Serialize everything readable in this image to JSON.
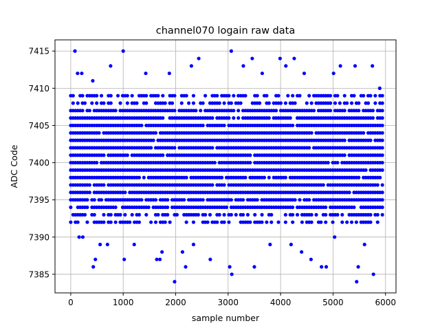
{
  "chart_data": {
    "type": "scatter",
    "title": "channel070 logain raw data",
    "xlabel": "sample number",
    "ylabel": "ADC Code",
    "xlim": [
      -300,
      6200
    ],
    "ylim": [
      7382.5,
      7416.5
    ],
    "xticks": [
      0,
      1000,
      2000,
      3000,
      4000,
      5000,
      6000
    ],
    "yticks": [
      7385,
      7390,
      7395,
      7400,
      7405,
      7410,
      7415
    ],
    "grid": true,
    "marker_color": "#0000ff",
    "series": [
      {
        "name": "",
        "summary": {
          "x_range": [
            0,
            5940
          ],
          "y_range": [
            7384,
            7415
          ],
          "dense_band": [
            7392,
            7409
          ]
        },
        "points": [
          [
            80,
            7415
          ],
          [
            1000,
            7415
          ],
          [
            3060,
            7415
          ],
          [
            130,
            7412
          ],
          [
            210,
            7412
          ],
          [
            420,
            7411
          ],
          [
            760,
            7413
          ],
          [
            1430,
            7412
          ],
          [
            1880,
            7412
          ],
          [
            2300,
            7413
          ],
          [
            2440,
            7414
          ],
          [
            3290,
            7413
          ],
          [
            3460,
            7414
          ],
          [
            3650,
            7412
          ],
          [
            3990,
            7414
          ],
          [
            4100,
            7413
          ],
          [
            4260,
            7414
          ],
          [
            4450,
            7412
          ],
          [
            5010,
            7412
          ],
          [
            5140,
            7413
          ],
          [
            5420,
            7413
          ],
          [
            5750,
            7413
          ],
          [
            5890,
            7410
          ],
          [
            430,
            7386
          ],
          [
            470,
            7387
          ],
          [
            1020,
            7387
          ],
          [
            1640,
            7387
          ],
          [
            1700,
            7387
          ],
          [
            1740,
            7388
          ],
          [
            1980,
            7384
          ],
          [
            2130,
            7388
          ],
          [
            2190,
            7386
          ],
          [
            2660,
            7387
          ],
          [
            3030,
            7386
          ],
          [
            3070,
            7385
          ],
          [
            3500,
            7386
          ],
          [
            4400,
            7388
          ],
          [
            4580,
            7387
          ],
          [
            4780,
            7386
          ],
          [
            4870,
            7386
          ],
          [
            5450,
            7384
          ],
          [
            5480,
            7386
          ],
          [
            5770,
            7385
          ],
          [
            160,
            7390
          ],
          [
            230,
            7390
          ],
          [
            560,
            7389
          ],
          [
            700,
            7389
          ],
          [
            1210,
            7389
          ],
          [
            2340,
            7389
          ],
          [
            3800,
            7389
          ],
          [
            4200,
            7389
          ],
          [
            5030,
            7390
          ],
          [
            5600,
            7389
          ]
        ]
      }
    ]
  }
}
